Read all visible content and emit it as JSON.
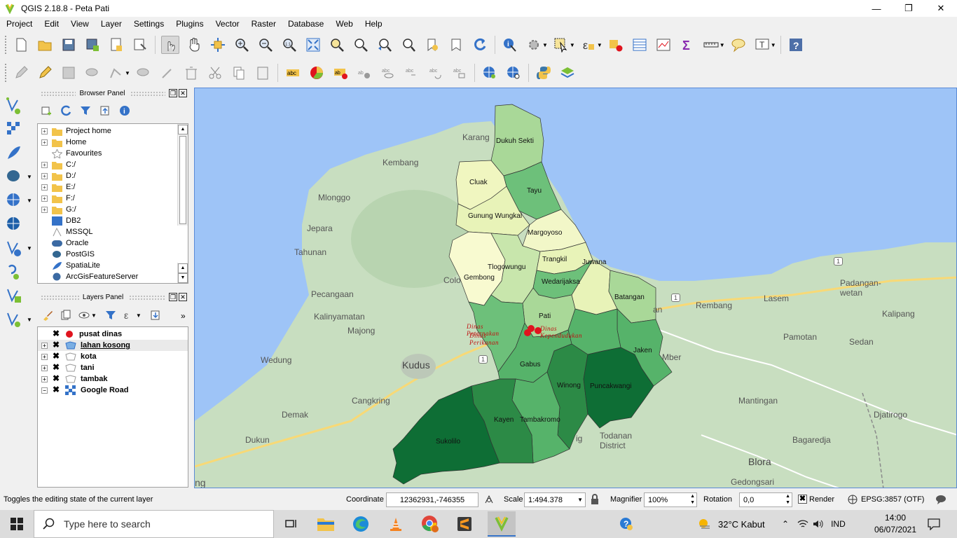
{
  "window": {
    "title": "QGIS 2.18.8 - Peta Pati"
  },
  "menu": [
    "Project",
    "Edit",
    "View",
    "Layer",
    "Settings",
    "Plugins",
    "Vector",
    "Raster",
    "Database",
    "Web",
    "Help"
  ],
  "browser_panel": {
    "title": "Browser Panel",
    "items": [
      {
        "label": "Project home",
        "icon": "folder-icon"
      },
      {
        "label": "Home",
        "icon": "folder-icon"
      },
      {
        "label": "Favourites",
        "icon": "star-icon"
      },
      {
        "label": "C:/",
        "icon": "folder-icon"
      },
      {
        "label": "D:/",
        "icon": "folder-icon"
      },
      {
        "label": "E:/",
        "icon": "folder-icon"
      },
      {
        "label": "F:/",
        "icon": "folder-icon"
      },
      {
        "label": "G:/",
        "icon": "folder-icon"
      },
      {
        "label": "DB2",
        "icon": "db2-icon"
      },
      {
        "label": "MSSQL",
        "icon": "mssql-icon"
      },
      {
        "label": "Oracle",
        "icon": "oracle-icon"
      },
      {
        "label": "PostGIS",
        "icon": "postgis-icon"
      },
      {
        "label": "SpatiaLite",
        "icon": "spatialite-icon"
      },
      {
        "label": "ArcGisFeatureServer",
        "icon": "arcgis-icon"
      }
    ]
  },
  "layers_panel": {
    "title": "Layers Panel",
    "layers": [
      {
        "label": "pusat dinas",
        "icon": "point-icon"
      },
      {
        "label": "lahan kosong",
        "icon": "polygon-icon"
      },
      {
        "label": "kota",
        "icon": "polygon-icon"
      },
      {
        "label": "tani",
        "icon": "polygon-icon"
      },
      {
        "label": "tambak",
        "icon": "polygon-icon"
      },
      {
        "label": "Google Road",
        "icon": "raster-icon"
      }
    ]
  },
  "map": {
    "districts": [
      "Dukuh Sekti",
      "Cluak",
      "Tayu",
      "Gunung Wungkal",
      "Margoyoso",
      "Trangkil",
      "Tlogowungu",
      "Gembong",
      "Juwana",
      "Wedarijaksa",
      "Batangan",
      "Pati",
      "Jaken",
      "Gabus",
      "Winong",
      "Puncakwangi",
      "Kayen",
      "Tambakromo",
      "Sukolilo"
    ],
    "points": [
      "Dinas Peternakan",
      "Dinas Kependudukan",
      "Dinas Perikanan"
    ],
    "basemap_labels": [
      "Karang",
      "Kembang",
      "Mlonggo",
      "Jepara",
      "Tahunan",
      "Pecangaan",
      "Kalinyamatan",
      "Majong",
      "Colo",
      "Wedung",
      "Kudus",
      "Cangkring",
      "Demak",
      "Dukun",
      "Todanan District",
      "Blora",
      "Mantingan",
      "Bagaredja",
      "Djatirogo",
      "Rembang",
      "Lasem",
      "Padangan-wetan",
      "Kalipang",
      "Pamotan",
      "Sedan",
      "Gedongsari",
      "Mber",
      "an",
      "ng",
      "ig",
      "1"
    ],
    "colors": {
      "sea": "#9ec4f7",
      "land": "#c8dec0",
      "light": "#f5f9d0",
      "mid": "#a9d898",
      "green": "#56b36a",
      "dark": "#2c8a46",
      "darkest": "#0e6e35",
      "point": "#e0141e"
    }
  },
  "statusbar": {
    "message": "Toggles the editing state of the current layer",
    "coordinate_label": "Coordinate",
    "coordinate_value": "12362931,-746355",
    "scale_label": "Scale",
    "scale_value": "1:494.378",
    "magnifier_label": "Magnifier",
    "magnifier_value": "100%",
    "rotation_label": "Rotation",
    "rotation_value": "0,0",
    "render_label": "Render",
    "crs": "EPSG:3857 (OTF)"
  },
  "taskbar": {
    "search_placeholder": "Type here to search",
    "weather": "32°C  Kabut",
    "lang": "IND",
    "time": "14:00",
    "date": "06/07/2021"
  }
}
